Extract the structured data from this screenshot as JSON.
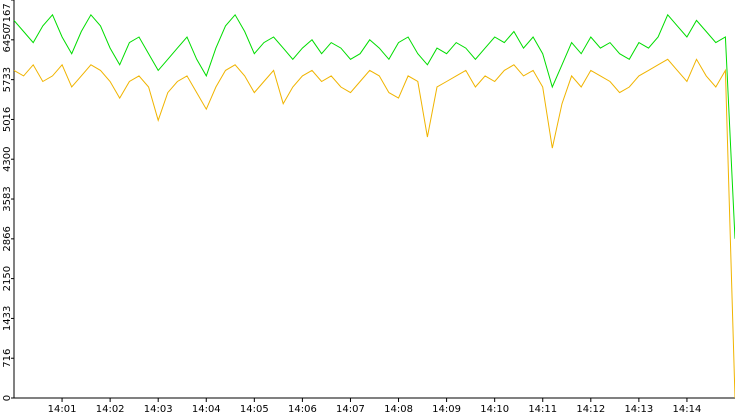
{
  "chart_data": {
    "type": "line",
    "x": [
      0,
      0.2,
      0.4,
      0.6,
      0.8,
      1,
      1.2,
      1.4,
      1.6,
      1.8,
      2,
      2.2,
      2.4,
      2.6,
      2.8,
      3,
      3.2,
      3.4,
      3.6,
      3.8,
      4,
      4.2,
      4.4,
      4.6,
      4.8,
      5,
      5.2,
      5.4,
      5.6,
      5.8,
      6,
      6.2,
      6.4,
      6.6,
      6.8,
      7,
      7.2,
      7.4,
      7.6,
      7.8,
      8,
      8.2,
      8.4,
      8.6,
      8.8,
      9,
      9.2,
      9.4,
      9.6,
      9.8,
      10,
      10.2,
      10.4,
      10.6,
      10.8,
      11,
      11.2,
      11.4,
      11.6,
      11.8,
      12,
      12.2,
      12.4,
      12.6,
      12.8,
      13,
      13.2,
      13.4,
      13.6,
      13.8,
      14,
      14.2,
      14.4,
      14.6,
      14.8,
      15
    ],
    "series": [
      {
        "color": "#00dd00",
        "values": [
          6800,
          6600,
          6400,
          6700,
          6900,
          6500,
          6200,
          6600,
          6900,
          6700,
          6300,
          6000,
          6400,
          6500,
          6200,
          5900,
          6100,
          6300,
          6500,
          6100,
          5800,
          6300,
          6700,
          6900,
          6600,
          6200,
          6400,
          6500,
          6300,
          6100,
          6300,
          6450,
          6200,
          6400,
          6300,
          6100,
          6200,
          6450,
          6300,
          6100,
          6400,
          6500,
          6200,
          6000,
          6300,
          6200,
          6400,
          6300,
          6100,
          6300,
          6500,
          6400,
          6600,
          6300,
          6500,
          6200,
          5600,
          6000,
          6400,
          6200,
          6500,
          6300,
          6400,
          6200,
          6100,
          6400,
          6300,
          6500,
          6900,
          6700,
          6500,
          6800,
          6600,
          6400,
          6500,
          2866
        ]
      },
      {
        "color": "#f0b400",
        "values": [
          5900,
          5800,
          6000,
          5700,
          5800,
          6000,
          5600,
          5800,
          6000,
          5900,
          5700,
          5400,
          5700,
          5800,
          5600,
          5000,
          5500,
          5700,
          5800,
          5500,
          5200,
          5600,
          5900,
          6000,
          5800,
          5500,
          5700,
          5900,
          5300,
          5600,
          5800,
          5900,
          5700,
          5800,
          5600,
          5500,
          5700,
          5900,
          5800,
          5500,
          5400,
          5800,
          5700,
          4700,
          5600,
          5700,
          5800,
          5900,
          5600,
          5800,
          5700,
          5900,
          6000,
          5800,
          5900,
          5600,
          4500,
          5300,
          5800,
          5600,
          5900,
          5800,
          5700,
          5500,
          5600,
          5800,
          5900,
          6000,
          6100,
          5900,
          5700,
          6100,
          5800,
          5600,
          5900,
          0
        ]
      }
    ],
    "xlim": [
      0,
      15
    ],
    "xticks": [
      {
        "value": 1,
        "label": "14:01"
      },
      {
        "value": 2,
        "label": "14:02"
      },
      {
        "value": 3,
        "label": "14:03"
      },
      {
        "value": 4,
        "label": "14:04"
      },
      {
        "value": 5,
        "label": "14:05"
      },
      {
        "value": 6,
        "label": "14:06"
      },
      {
        "value": 7,
        "label": "14:07"
      },
      {
        "value": 8,
        "label": "14:08"
      },
      {
        "value": 9,
        "label": "14:09"
      },
      {
        "value": 10,
        "label": "14:10"
      },
      {
        "value": 11,
        "label": "14:11"
      },
      {
        "value": 12,
        "label": "14:12"
      },
      {
        "value": 13,
        "label": "14:13"
      },
      {
        "value": 14,
        "label": "14:14"
      }
    ],
    "ylim": [
      0,
      7167
    ],
    "yticks": [
      0,
      716,
      1433,
      2150,
      2866,
      3583,
      4300,
      5016,
      5733,
      6450,
      7167
    ]
  }
}
